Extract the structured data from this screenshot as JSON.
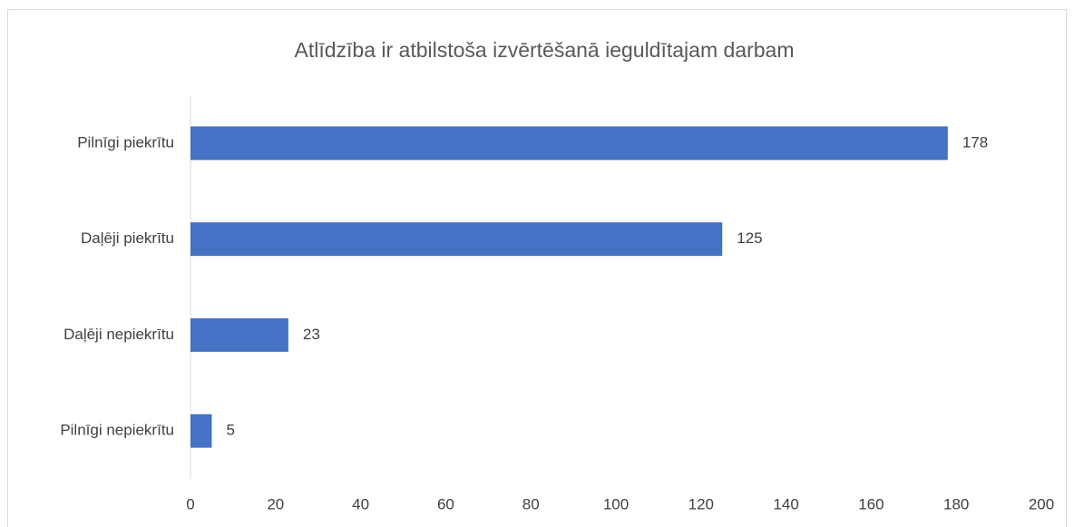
{
  "chart_data": {
    "type": "bar",
    "orientation": "horizontal",
    "title": "Atlīdzība ir atbilstoša izvērtēšanā ieguldītajam darbam",
    "categories": [
      "Pilnīgi piekrītu",
      "Daļēji piekrītu",
      "Daļēji nepiekrītu",
      "Pilnīgi nepiekrītu"
    ],
    "values": [
      178,
      125,
      23,
      5
    ],
    "color": "#4472c4",
    "xlim": [
      0,
      200
    ],
    "xticks": [
      0,
      20,
      40,
      60,
      80,
      100,
      120,
      140,
      160,
      180,
      200
    ],
    "grid": false
  }
}
